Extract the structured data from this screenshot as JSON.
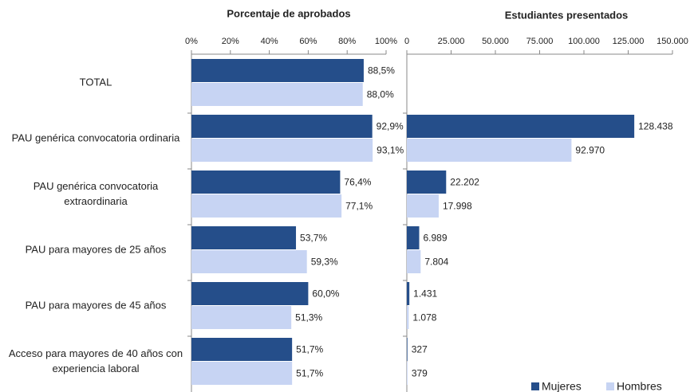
{
  "chart_data": [
    {
      "type": "hbar",
      "title": "Porcentaje de aprobados",
      "categories": [
        "TOTAL",
        "PAU genérica convocatoria ordinaria",
        "PAU genérica convocatoria extraordinaria",
        "PAU para mayores de 25 años",
        "PAU para mayores de 45 años",
        "Acceso para mayores de 40 años con experiencia laboral"
      ],
      "series": [
        {
          "name": "Mujeres",
          "color": "#254e8a",
          "values": [
            88.5,
            92.9,
            76.4,
            53.7,
            60.0,
            51.7
          ],
          "value_labels": [
            "88,5%",
            "92,9%",
            "76,4%",
            "53,7%",
            "60,0%",
            "51,7%"
          ]
        },
        {
          "name": "Hombres",
          "color": "#c7d4f3",
          "values": [
            88.0,
            93.1,
            77.1,
            59.3,
            51.3,
            51.7
          ],
          "value_labels": [
            "88,0%",
            "93,1%",
            "77,1%",
            "59,3%",
            "51,3%",
            "51,7%"
          ]
        }
      ],
      "xlim": [
        0,
        100
      ],
      "xticks": [
        {
          "value": 0,
          "label": "0%"
        },
        {
          "value": 20,
          "label": "20%"
        },
        {
          "value": 40,
          "label": "40%"
        },
        {
          "value": 60,
          "label": "60%"
        },
        {
          "value": 80,
          "label": "80%"
        },
        {
          "value": 100,
          "label": "100%"
        }
      ]
    },
    {
      "type": "hbar",
      "title": "Estudiantes presentados",
      "series": [
        {
          "color": "#254e8a",
          "values": [
            null,
            128438,
            22202,
            6989,
            1431,
            327
          ],
          "value_labels": [
            null,
            "128.438",
            "22.202",
            "6.989",
            "1.431",
            "327"
          ]
        },
        {
          "color": "#c7d4f3",
          "values": [
            null,
            92970,
            17998,
            7804,
            1078,
            379
          ],
          "value_labels": [
            null,
            "92.970",
            "17.998",
            "7.804",
            "1.078",
            "379"
          ]
        }
      ],
      "xlim": [
        0,
        150000
      ],
      "xticks": [
        0,
        {
          "value": 25000,
          "label": "25.000"
        },
        {
          "value": 50000,
          "label": "50.000"
        },
        {
          "value": 75000,
          "label": "75.000"
        },
        {
          "value": 100000,
          "label": "100.000"
        },
        {
          "value": 125000,
          "label": "125.000"
        },
        {
          "value": 150000,
          "label": "150.000"
        }
      ],
      "legend": "bottom-right"
    }
  ]
}
